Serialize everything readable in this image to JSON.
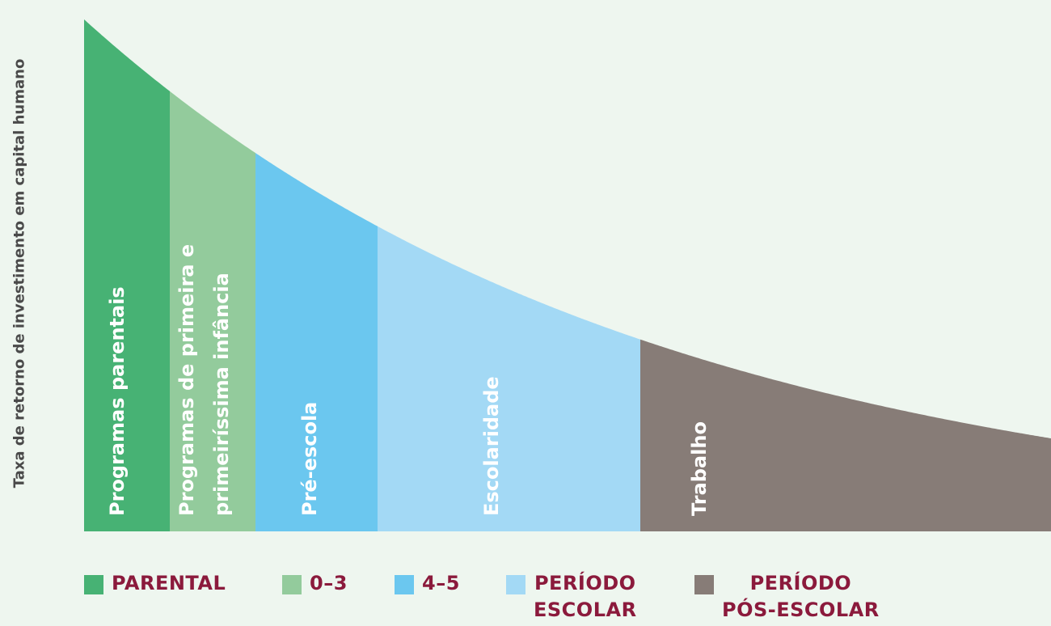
{
  "chart_data": {
    "type": "area",
    "ylabel": "Taxa de retorno de investimento em capital humano",
    "curve_shape": "decreasing (exponential decay)",
    "segments": [
      {
        "label_lines": [
          "Programas parentais"
        ],
        "color": "#47b274"
      },
      {
        "label_lines": [
          "Programas de primeira e",
          "primeiríssima infância"
        ],
        "color": "#93cb9c"
      },
      {
        "label_lines": [
          "Pré-escola"
        ],
        "color": "#6bc7ef"
      },
      {
        "label_lines": [
          "Escolaridade"
        ],
        "color": "#a3d9f5"
      },
      {
        "label_lines": [
          "Trabalho"
        ],
        "color": "#877c77"
      }
    ],
    "legend": [
      {
        "label_lines": [
          "PARENTAL"
        ],
        "color": "#47b274"
      },
      {
        "label_lines": [
          "0–3"
        ],
        "color": "#93cb9c"
      },
      {
        "label_lines": [
          "4–5"
        ],
        "color": "#6bc7ef"
      },
      {
        "label_lines": [
          "PERÍODO",
          "ESCOLAR"
        ],
        "color": "#a3d9f5"
      },
      {
        "label_lines": [
          "PERÍODO",
          "PÓS-ESCOLAR"
        ],
        "color": "#877c77"
      }
    ],
    "legend_placement": "bottom",
    "grid": false
  }
}
